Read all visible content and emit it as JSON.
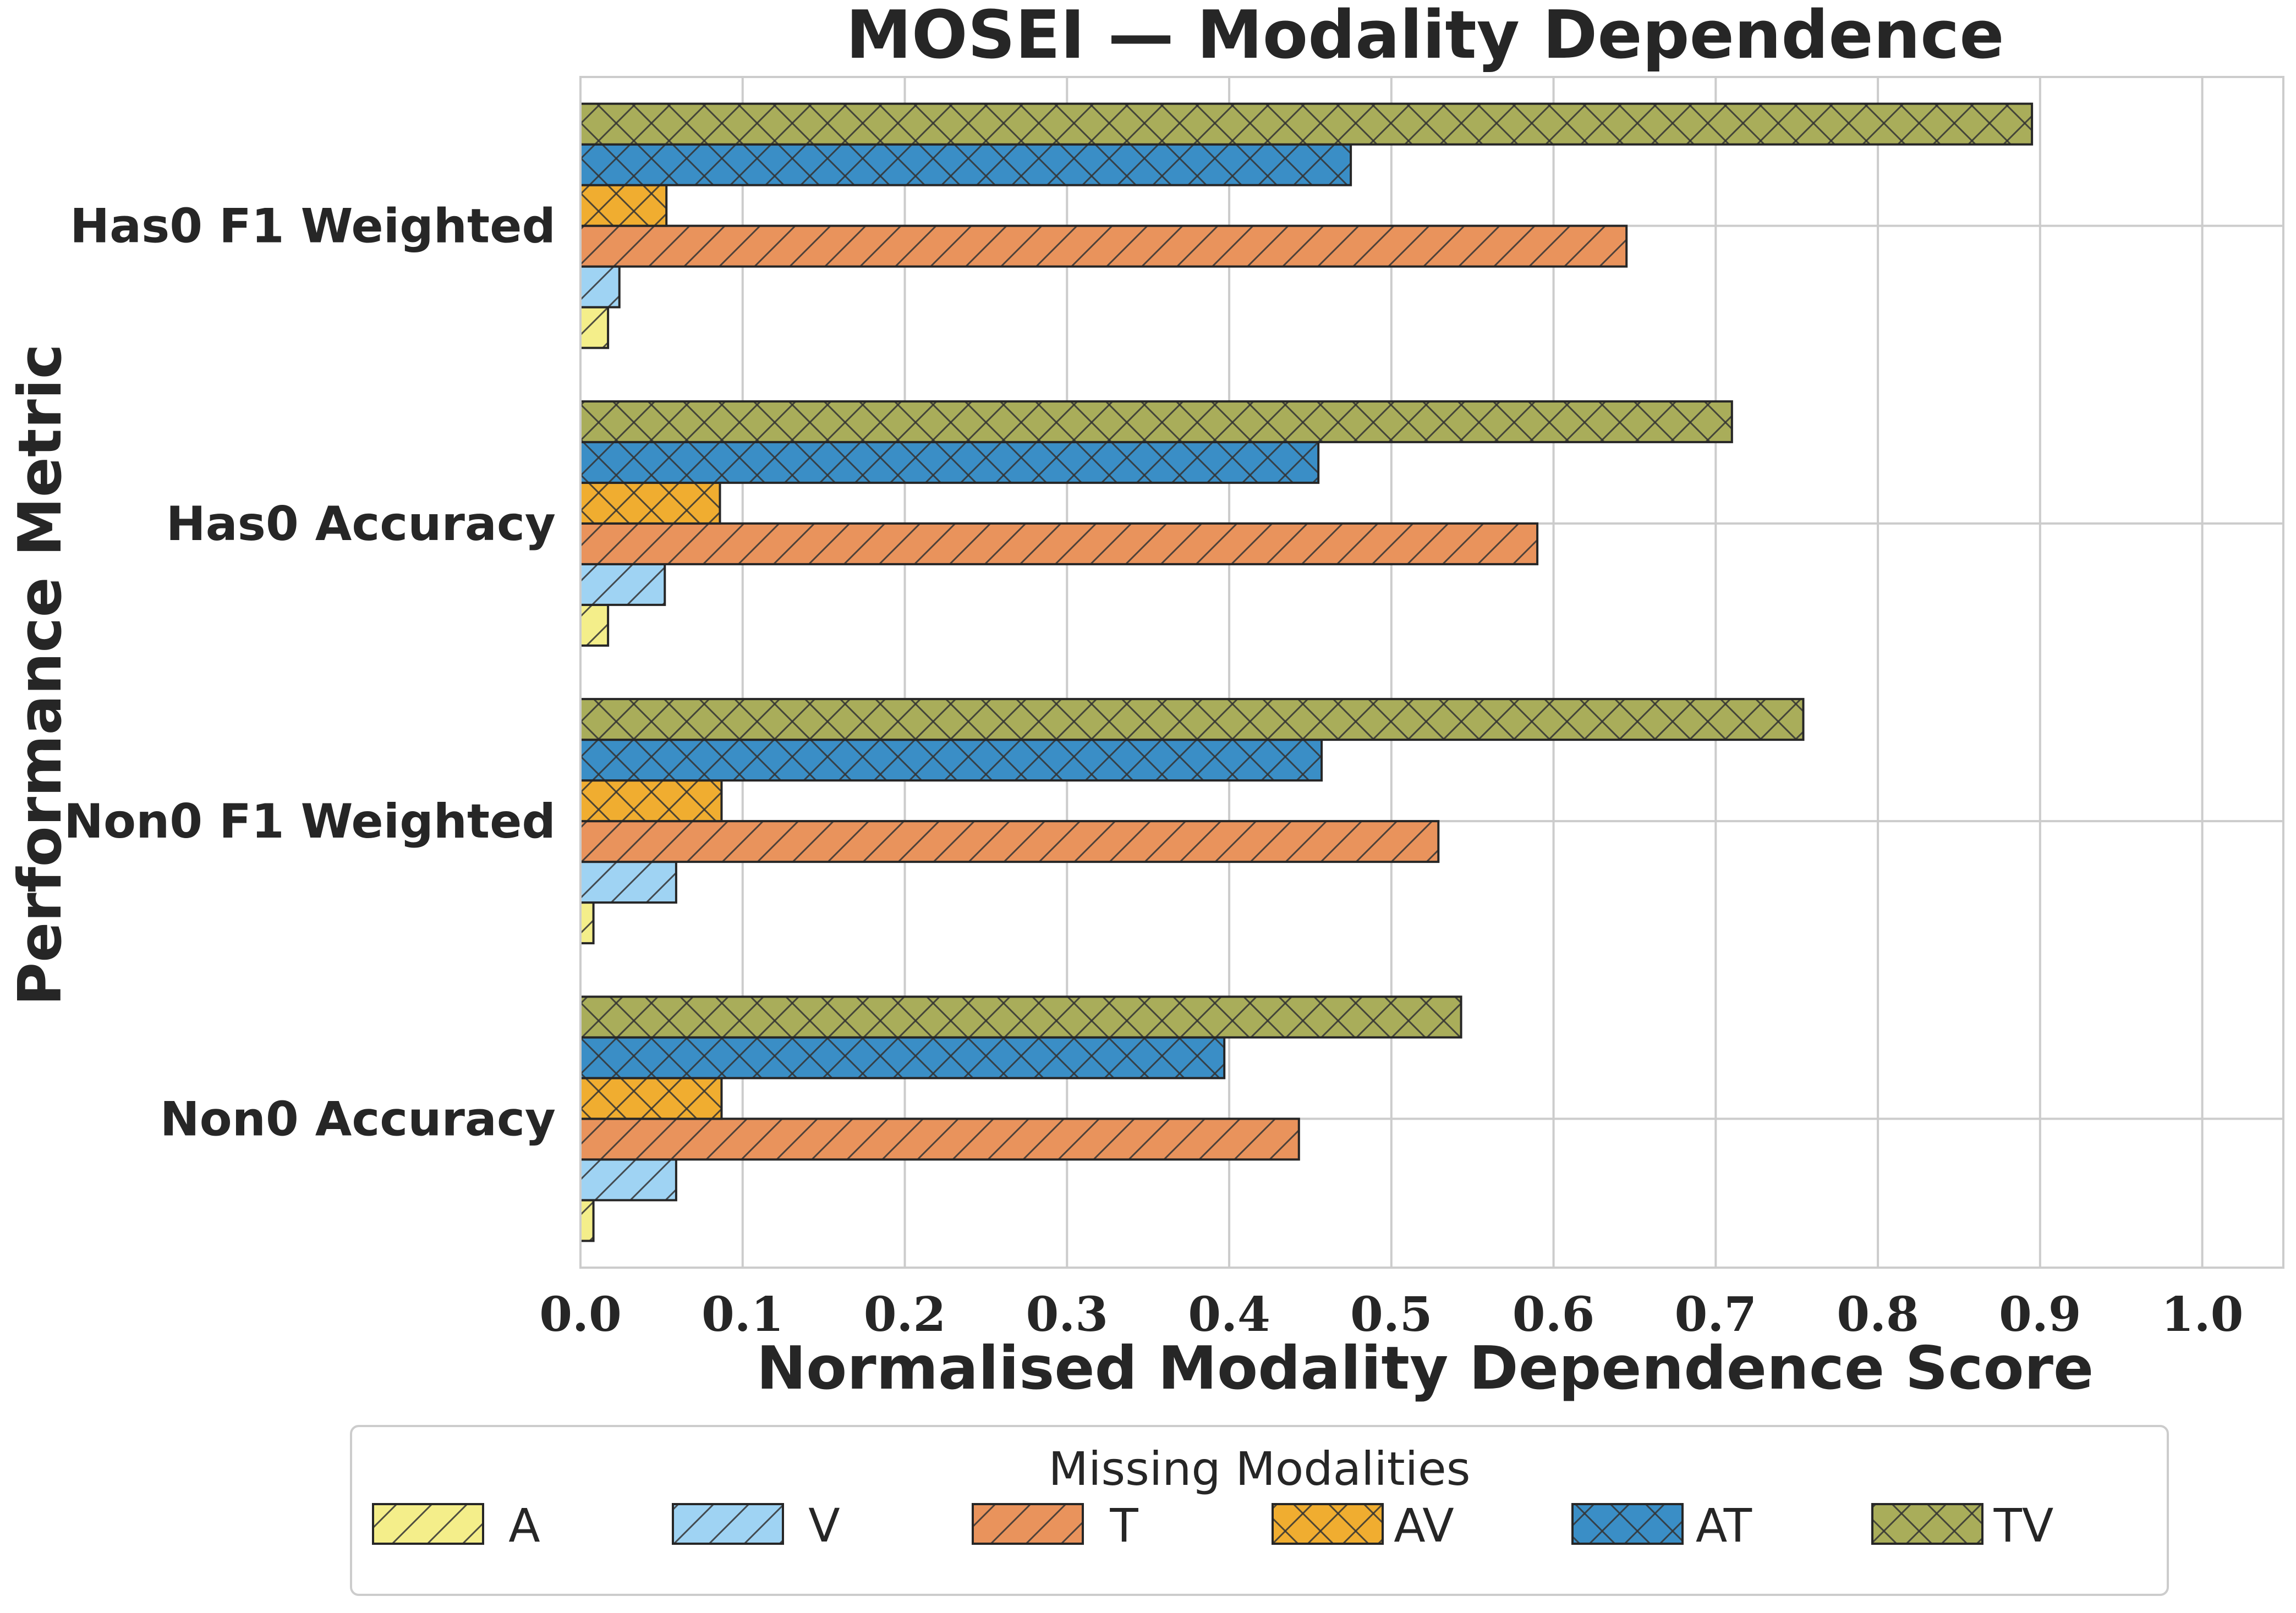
{
  "chart_data": {
    "type": "bar",
    "orientation": "horizontal",
    "title": "MOSEI — Modality Dependence",
    "xlabel": "Normalised Modality Dependence Score",
    "ylabel": "Performance Metric",
    "xlim": [
      0,
      1.05
    ],
    "xticks": [
      0.0,
      0.1,
      0.2,
      0.3,
      0.4,
      0.5,
      0.6,
      0.7,
      0.8,
      0.9,
      1.0
    ],
    "xtick_labels": [
      "0.0",
      "0.1",
      "0.2",
      "0.3",
      "0.4",
      "0.5",
      "0.6",
      "0.7",
      "0.8",
      "0.9",
      "1.0"
    ],
    "grid": true,
    "categories": [
      "Has0 F1 Weighted",
      "Has0 Accuracy",
      "Non0 F1 Weighted",
      "Non0 Accuracy"
    ],
    "legend_title": "Missing Modalities",
    "legend_position": "bottom-center",
    "series": [
      {
        "name": "A",
        "color": "#f4ee8a",
        "hatch": "diagonal",
        "values": [
          0.017,
          0.017,
          0.008,
          0.008
        ]
      },
      {
        "name": "V",
        "color": "#9fd3f3",
        "hatch": "diagonal",
        "values": [
          0.024,
          0.052,
          0.059,
          0.059
        ]
      },
      {
        "name": "T",
        "color": "#e9935c",
        "hatch": "diagonal",
        "values": [
          0.645,
          0.59,
          0.529,
          0.443
        ]
      },
      {
        "name": "AV",
        "color": "#f0ad30",
        "hatch": "cross",
        "values": [
          0.053,
          0.086,
          0.087,
          0.087
        ]
      },
      {
        "name": "AT",
        "color": "#3a8ec6",
        "hatch": "cross",
        "values": [
          0.475,
          0.455,
          0.457,
          0.397
        ]
      },
      {
        "name": "TV",
        "color": "#a9ad5a",
        "hatch": "cross",
        "values": [
          0.895,
          0.71,
          0.754,
          0.543
        ]
      }
    ]
  }
}
